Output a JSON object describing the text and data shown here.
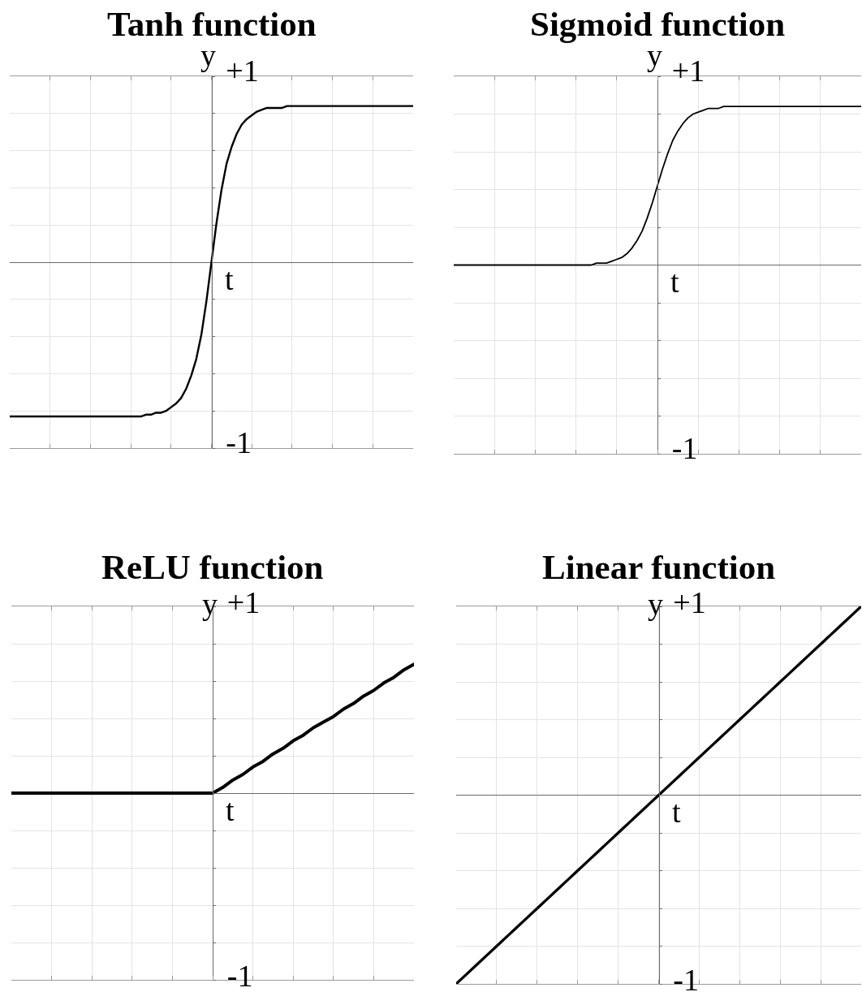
{
  "chart_data": [
    {
      "type": "line",
      "title": "Tanh function",
      "xlabel": "t",
      "ylabel": "y",
      "grid": true,
      "tick_labels": "y",
      "ylim": [
        -1,
        1
      ],
      "yticks": [
        -1,
        {
          "value": -0.8,
          "label": null
        },
        {
          "value": -0.6,
          "label": null
        },
        {
          "value": -0.4,
          "label": null
        },
        {
          "value": -0.2,
          "label": null
        },
        {
          "value": 0,
          "label": null
        },
        {
          "value": 0.2,
          "label": null
        },
        {
          "value": 0.4,
          "label": null
        },
        {
          "value": 0.6,
          "label": null
        },
        {
          "value": 0.8,
          "label": null
        },
        {
          "value": 1,
          "label": "+1"
        }
      ],
      "categories": [
        null,
        null,
        null,
        null,
        null,
        null,
        null,
        null,
        null,
        null,
        null,
        null,
        null,
        null,
        null,
        null,
        null,
        null,
        null,
        null,
        null,
        null,
        null,
        null,
        null,
        null,
        null,
        null,
        null,
        null,
        null,
        null,
        null,
        null,
        null,
        null,
        null,
        null,
        null,
        null,
        null,
        null,
        null,
        null,
        null,
        null,
        null,
        null,
        null,
        null,
        null,
        null,
        null,
        null,
        null,
        null,
        null,
        null,
        null,
        null,
        null,
        null,
        null,
        null,
        null,
        null,
        null,
        null,
        null,
        null,
        null,
        null,
        null,
        null,
        null,
        null,
        null,
        null,
        null,
        null,
        null
      ],
      "series": [
        {
          "color": "#000000",
          "values": [
            -0.83,
            -0.83,
            -0.83,
            -0.83,
            -0.83,
            -0.83,
            -0.83,
            -0.83,
            -0.83,
            -0.83,
            -0.83,
            -0.83,
            -0.83,
            -0.83,
            -0.83,
            -0.83,
            -0.83,
            -0.83,
            -0.83,
            -0.83,
            -0.83,
            -0.83,
            -0.83,
            -0.83,
            -0.83,
            -0.83,
            -0.83,
            -0.82,
            -0.82,
            -0.81,
            -0.81,
            -0.8,
            -0.78,
            -0.76,
            -0.73,
            -0.68,
            -0.61,
            -0.52,
            -0.39,
            -0.21,
            0,
            0.21,
            0.39,
            0.53,
            0.62,
            0.69,
            0.74,
            0.77,
            0.79,
            0.81,
            0.82,
            0.83,
            0.83,
            0.83,
            0.83,
            0.84,
            0.84,
            0.84,
            0.84,
            0.84,
            0.84,
            0.84,
            0.84,
            0.84,
            0.84,
            0.84,
            0.84,
            0.84,
            0.84,
            0.84,
            0.84,
            0.84,
            0.84,
            0.84,
            0.84,
            0.84,
            0.84,
            0.84,
            0.84,
            0.84,
            0.84
          ]
        }
      ]
    },
    {
      "type": "line",
      "title": "Sigmoid function",
      "xlabel": "t",
      "ylabel": "y",
      "grid": true,
      "tick_labels": "y",
      "ylim": [
        -1,
        1
      ],
      "yticks": [
        -1,
        {
          "value": -0.8,
          "label": null
        },
        {
          "value": -0.6,
          "label": null
        },
        {
          "value": -0.4,
          "label": null
        },
        {
          "value": -0.2,
          "label": null
        },
        {
          "value": 0,
          "label": null
        },
        {
          "value": 0.2,
          "label": null
        },
        {
          "value": 0.4,
          "label": null
        },
        {
          "value": 0.6,
          "label": null
        },
        {
          "value": 0.8,
          "label": null
        },
        {
          "value": 1,
          "label": "+1"
        }
      ],
      "categories": [
        null,
        null,
        null,
        null,
        null,
        null,
        null,
        null,
        null,
        null,
        null,
        null,
        null,
        null,
        null,
        null,
        null,
        null,
        null,
        null,
        null,
        null,
        null,
        null,
        null,
        null,
        null,
        null,
        null,
        null,
        null,
        null,
        null,
        null,
        null,
        null,
        null,
        null,
        null,
        null,
        null,
        null,
        null,
        null,
        null,
        null,
        null,
        null,
        null,
        null,
        null,
        null,
        null,
        null,
        null,
        null,
        null,
        null,
        null,
        null,
        null,
        null,
        null,
        null,
        null,
        null,
        null,
        null,
        null,
        null,
        null,
        null,
        null,
        null,
        null,
        null,
        null,
        null,
        null,
        null,
        null
      ],
      "series": [
        {
          "color": "#000000",
          "values": [
            0,
            0,
            0,
            0,
            0,
            0,
            0,
            0,
            0,
            0,
            0,
            0,
            0,
            0,
            0,
            0,
            0,
            0,
            0,
            0,
            0,
            0,
            0,
            0,
            0,
            0,
            0,
            0,
            0.01,
            0.01,
            0.01,
            0.02,
            0.03,
            0.04,
            0.06,
            0.09,
            0.13,
            0.18,
            0.25,
            0.33,
            0.42,
            0.51,
            0.59,
            0.66,
            0.71,
            0.75,
            0.78,
            0.8,
            0.81,
            0.82,
            0.83,
            0.83,
            0.83,
            0.84,
            0.84,
            0.84,
            0.84,
            0.84,
            0.84,
            0.84,
            0.84,
            0.84,
            0.84,
            0.84,
            0.84,
            0.84,
            0.84,
            0.84,
            0.84,
            0.84,
            0.84,
            0.84,
            0.84,
            0.84,
            0.84,
            0.84,
            0.84,
            0.84,
            0.84,
            0.84,
            0.84
          ]
        }
      ]
    },
    {
      "type": "line",
      "title": "ReLU function",
      "xlabel": "t",
      "ylabel": "y",
      "grid": true,
      "tick_labels": "y",
      "ylim": [
        -1,
        1
      ],
      "yticks": [
        -1,
        {
          "value": -0.8,
          "label": null
        },
        {
          "value": -0.6,
          "label": null
        },
        {
          "value": -0.4,
          "label": null
        },
        {
          "value": -0.2,
          "label": null
        },
        {
          "value": 0,
          "label": null
        },
        {
          "value": 0.2,
          "label": null
        },
        {
          "value": 0.4,
          "label": null
        },
        {
          "value": 0.6,
          "label": null
        },
        {
          "value": 0.8,
          "label": null
        },
        {
          "value": 1,
          "label": "+1"
        }
      ],
      "categories": [
        null,
        null,
        null,
        null,
        null,
        null,
        null,
        null,
        null,
        null,
        null,
        null,
        null,
        null,
        null,
        null,
        null,
        null,
        null,
        null,
        null,
        null,
        null,
        null,
        null,
        null,
        null,
        null,
        null,
        null,
        null,
        null,
        null,
        null,
        null,
        null,
        null,
        null,
        null,
        null,
        null
      ],
      "series": [
        {
          "color": "#000000",
          "values": [
            0,
            0,
            0,
            0,
            0,
            0,
            0,
            0,
            0,
            0,
            0,
            0,
            0,
            0,
            0,
            0,
            0,
            0,
            0,
            0,
            0,
            0.03,
            0.07,
            0.1,
            0.14,
            0.17,
            0.21,
            0.24,
            0.28,
            0.31,
            0.35,
            0.38,
            0.41,
            0.45,
            0.48,
            0.52,
            0.55,
            0.59,
            0.62,
            0.66,
            0.69
          ]
        }
      ]
    },
    {
      "type": "line",
      "title": "Linear function",
      "xlabel": "t",
      "ylabel": "y",
      "grid": true,
      "tick_labels": "y",
      "ylim": [
        -1,
        1
      ],
      "yticks": [
        -1,
        {
          "value": -0.8,
          "label": null
        },
        {
          "value": -0.6,
          "label": null
        },
        {
          "value": -0.4,
          "label": null
        },
        {
          "value": -0.2,
          "label": null
        },
        {
          "value": 0,
          "label": null
        },
        {
          "value": 0.2,
          "label": null
        },
        {
          "value": 0.4,
          "label": null
        },
        {
          "value": 0.6,
          "label": null
        },
        {
          "value": 0.8,
          "label": null
        },
        {
          "value": 1,
          "label": "+1"
        }
      ],
      "categories": [
        null,
        null,
        null,
        null,
        null,
        null,
        null,
        null,
        null,
        null,
        null,
        null,
        null,
        null,
        null,
        null,
        null,
        null,
        null,
        null,
        null,
        null,
        null,
        null,
        null,
        null,
        null,
        null,
        null,
        null,
        null,
        null,
        null,
        null,
        null,
        null,
        null,
        null,
        null,
        null,
        null
      ],
      "series": [
        {
          "color": "#000000",
          "values": [
            -1,
            -0.95,
            -0.9,
            -0.85,
            -0.8,
            -0.75,
            -0.7,
            -0.65,
            -0.6,
            -0.55,
            -0.5,
            -0.45,
            -0.4,
            -0.35,
            -0.3,
            -0.25,
            -0.2,
            -0.15,
            -0.1,
            -0.05,
            0,
            0.05,
            0.1,
            0.15,
            0.2,
            0.25,
            0.3,
            0.35,
            0.4,
            0.45,
            0.5,
            0.55,
            0.6,
            0.65,
            0.7,
            0.75,
            0.8,
            0.85,
            0.9,
            0.95,
            1
          ]
        }
      ]
    }
  ]
}
